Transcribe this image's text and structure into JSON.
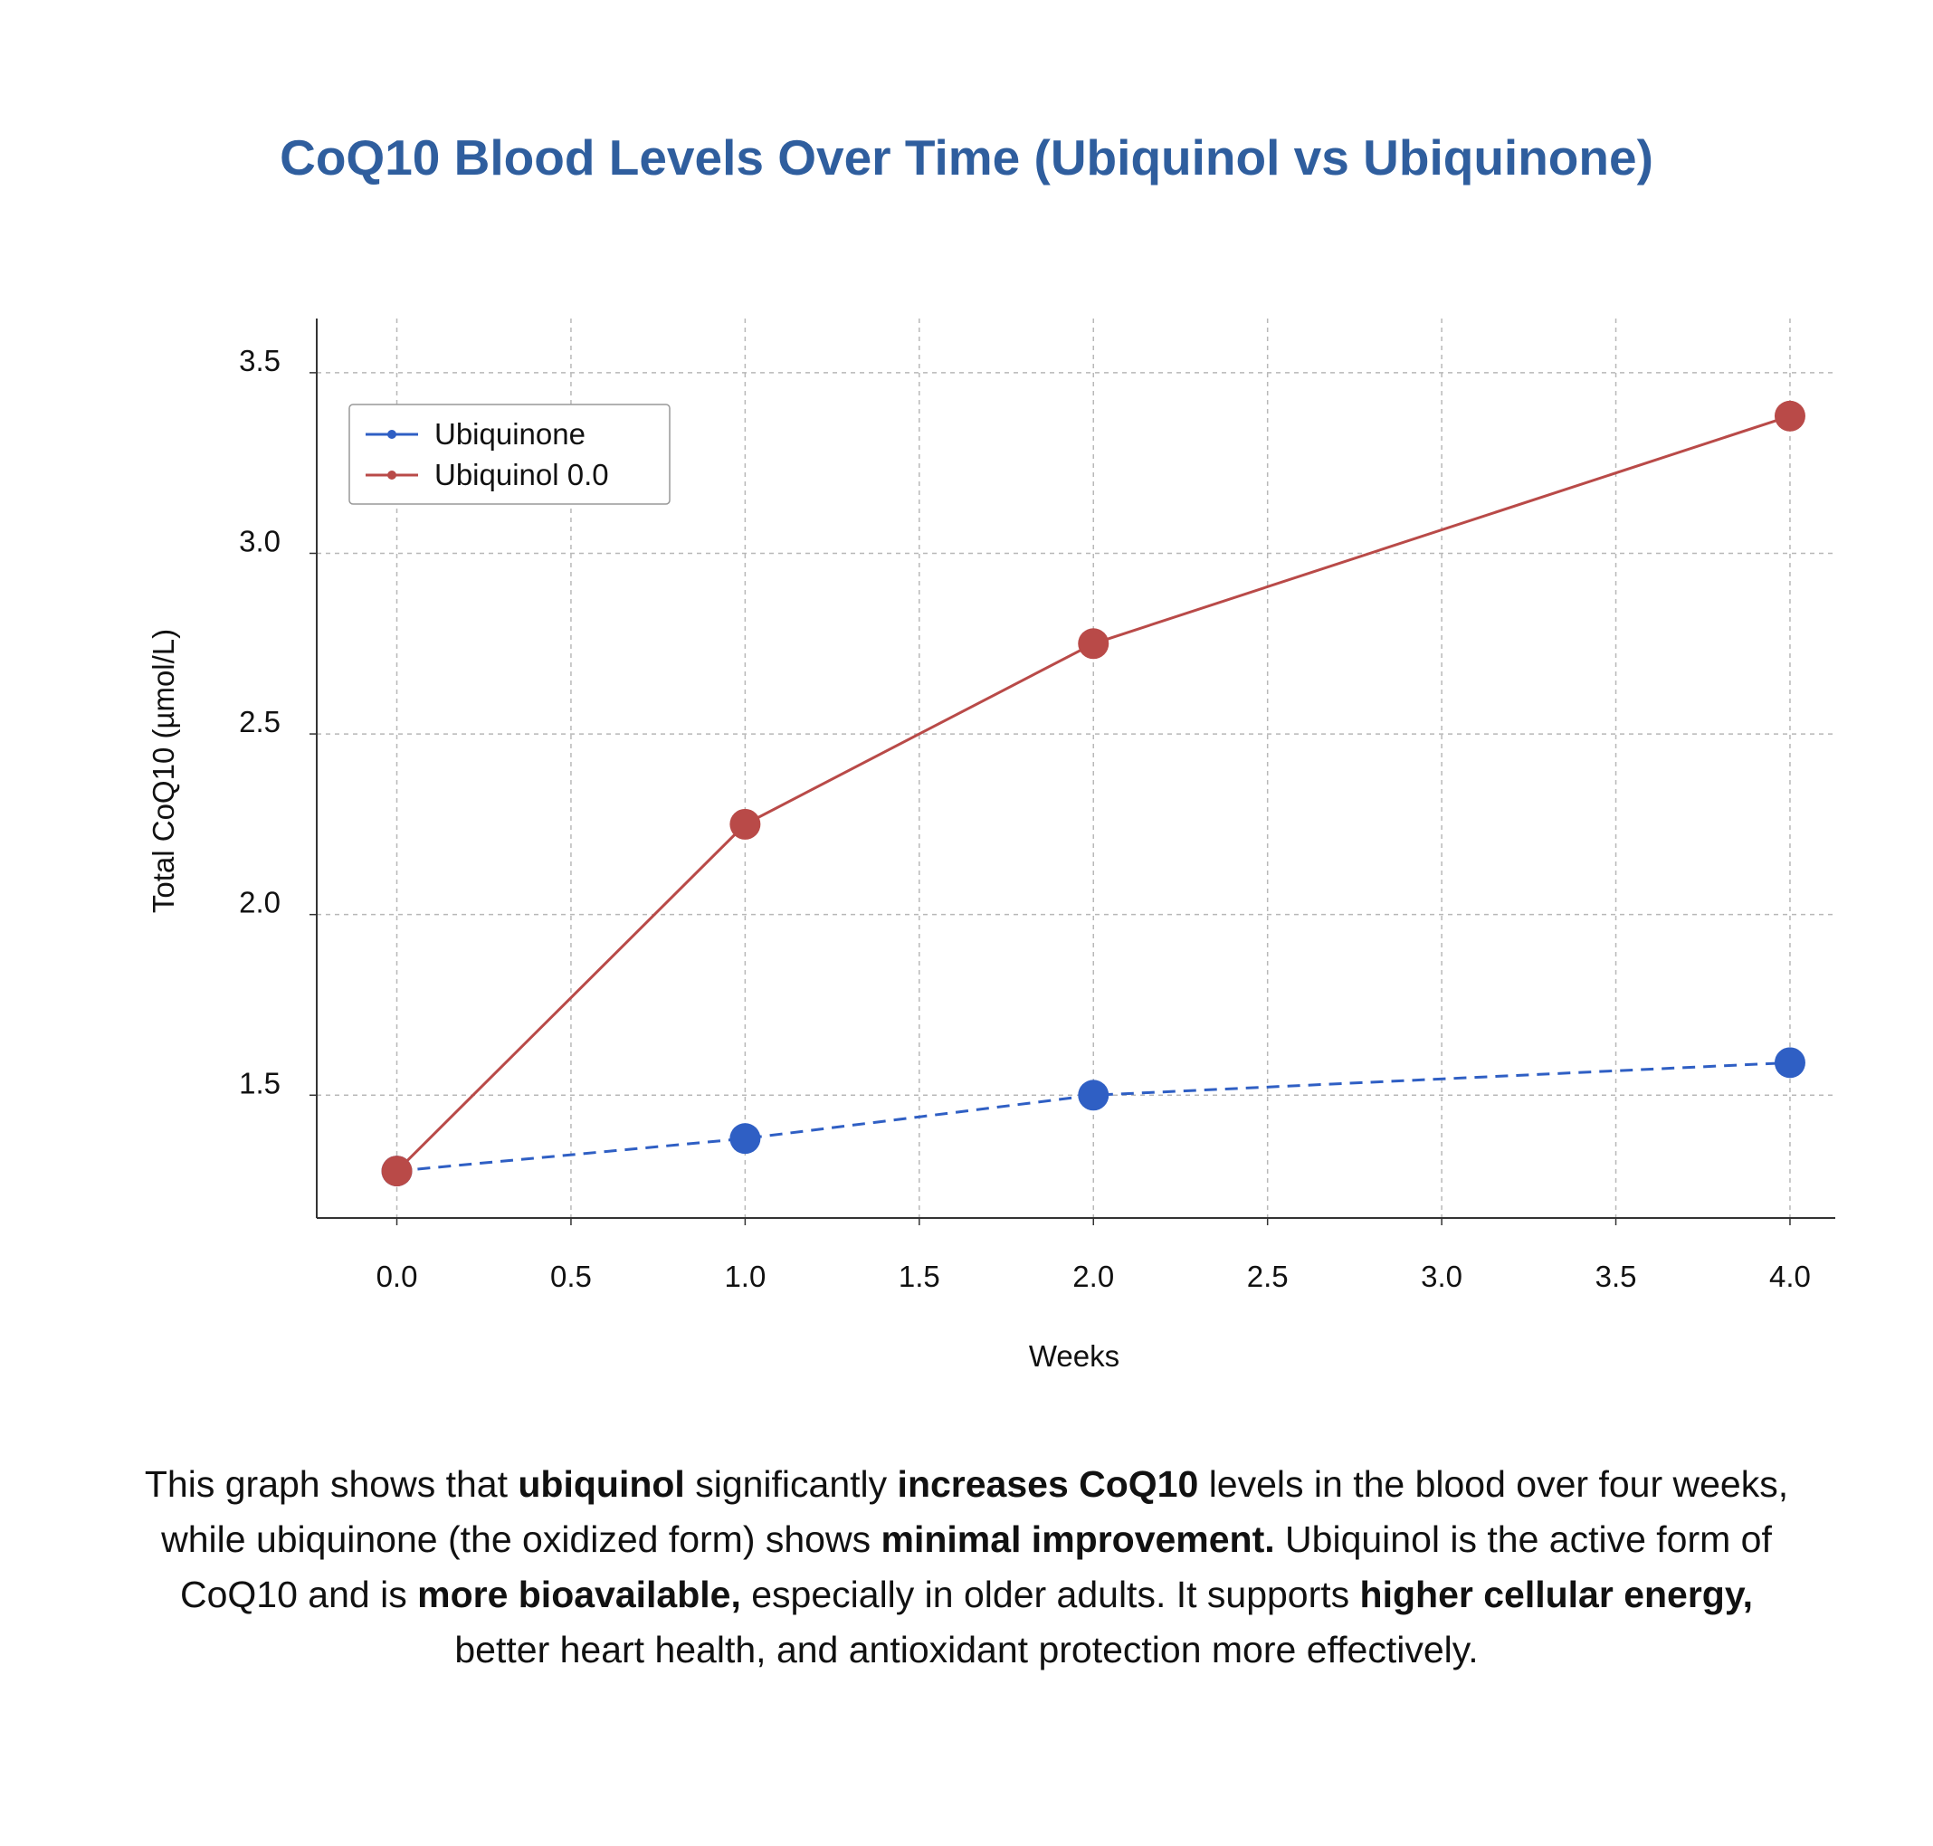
{
  "chart_data": {
    "type": "line",
    "title": "CoQ10 Blood Levels Over Time (Ubiquinol vs Ubiquinone)",
    "xlabel": "Weeks",
    "ylabel": "Total CoQ10 (µmol/L)",
    "xlim": [
      -0.23,
      4.13
    ],
    "ylim": [
      1.16,
      3.65
    ],
    "xticks": [
      0.0,
      0.5,
      1.0,
      1.5,
      2.0,
      2.5,
      3.0,
      3.5,
      4.0
    ],
    "xtick_labels": [
      "0.0",
      "0.5",
      "1.0",
      "1.5",
      "2.0",
      "2.5",
      "3.0",
      "3.5",
      "4.0"
    ],
    "yticks": [
      1.5,
      2.0,
      2.5,
      3.0,
      3.5
    ],
    "ytick_labels": [
      "1.5",
      "2.0",
      "2.5",
      "3.0",
      "3.5"
    ],
    "grid": true,
    "legend_position": "top-left",
    "series": [
      {
        "name": "Ubiquinone",
        "color": "#2f5fc4",
        "line_style": "dashed",
        "x": [
          0,
          1,
          2,
          4
        ],
        "y": [
          1.29,
          1.38,
          1.5,
          1.59
        ]
      },
      {
        "name": "Ubiquinol 0.0",
        "color": "#b94a48",
        "line_style": "solid",
        "x": [
          0,
          1,
          2,
          4
        ],
        "y": [
          1.29,
          2.25,
          2.75,
          3.38
        ]
      }
    ]
  },
  "caption": [
    {
      "text": "This graph shows that ",
      "bold": false
    },
    {
      "text": "ubiquinol",
      "bold": true
    },
    {
      "text": " significantly ",
      "bold": false
    },
    {
      "text": "increases CoQ10",
      "bold": true
    },
    {
      "text": " levels in the blood over four weeks, while ubiquinone (the oxidized form) shows ",
      "bold": false
    },
    {
      "text": "minimal improvement.",
      "bold": true
    },
    {
      "text": " Ubiquinol is the active form of CoQ10 and is ",
      "bold": false
    },
    {
      "text": "more bioavailable,",
      "bold": true
    },
    {
      "text": " especially in older adults. It supports ",
      "bold": false
    },
    {
      "text": "higher cellular energy,",
      "bold": true
    },
    {
      "text": " better heart health, and antioxidant protection more effectively.",
      "bold": false
    }
  ]
}
